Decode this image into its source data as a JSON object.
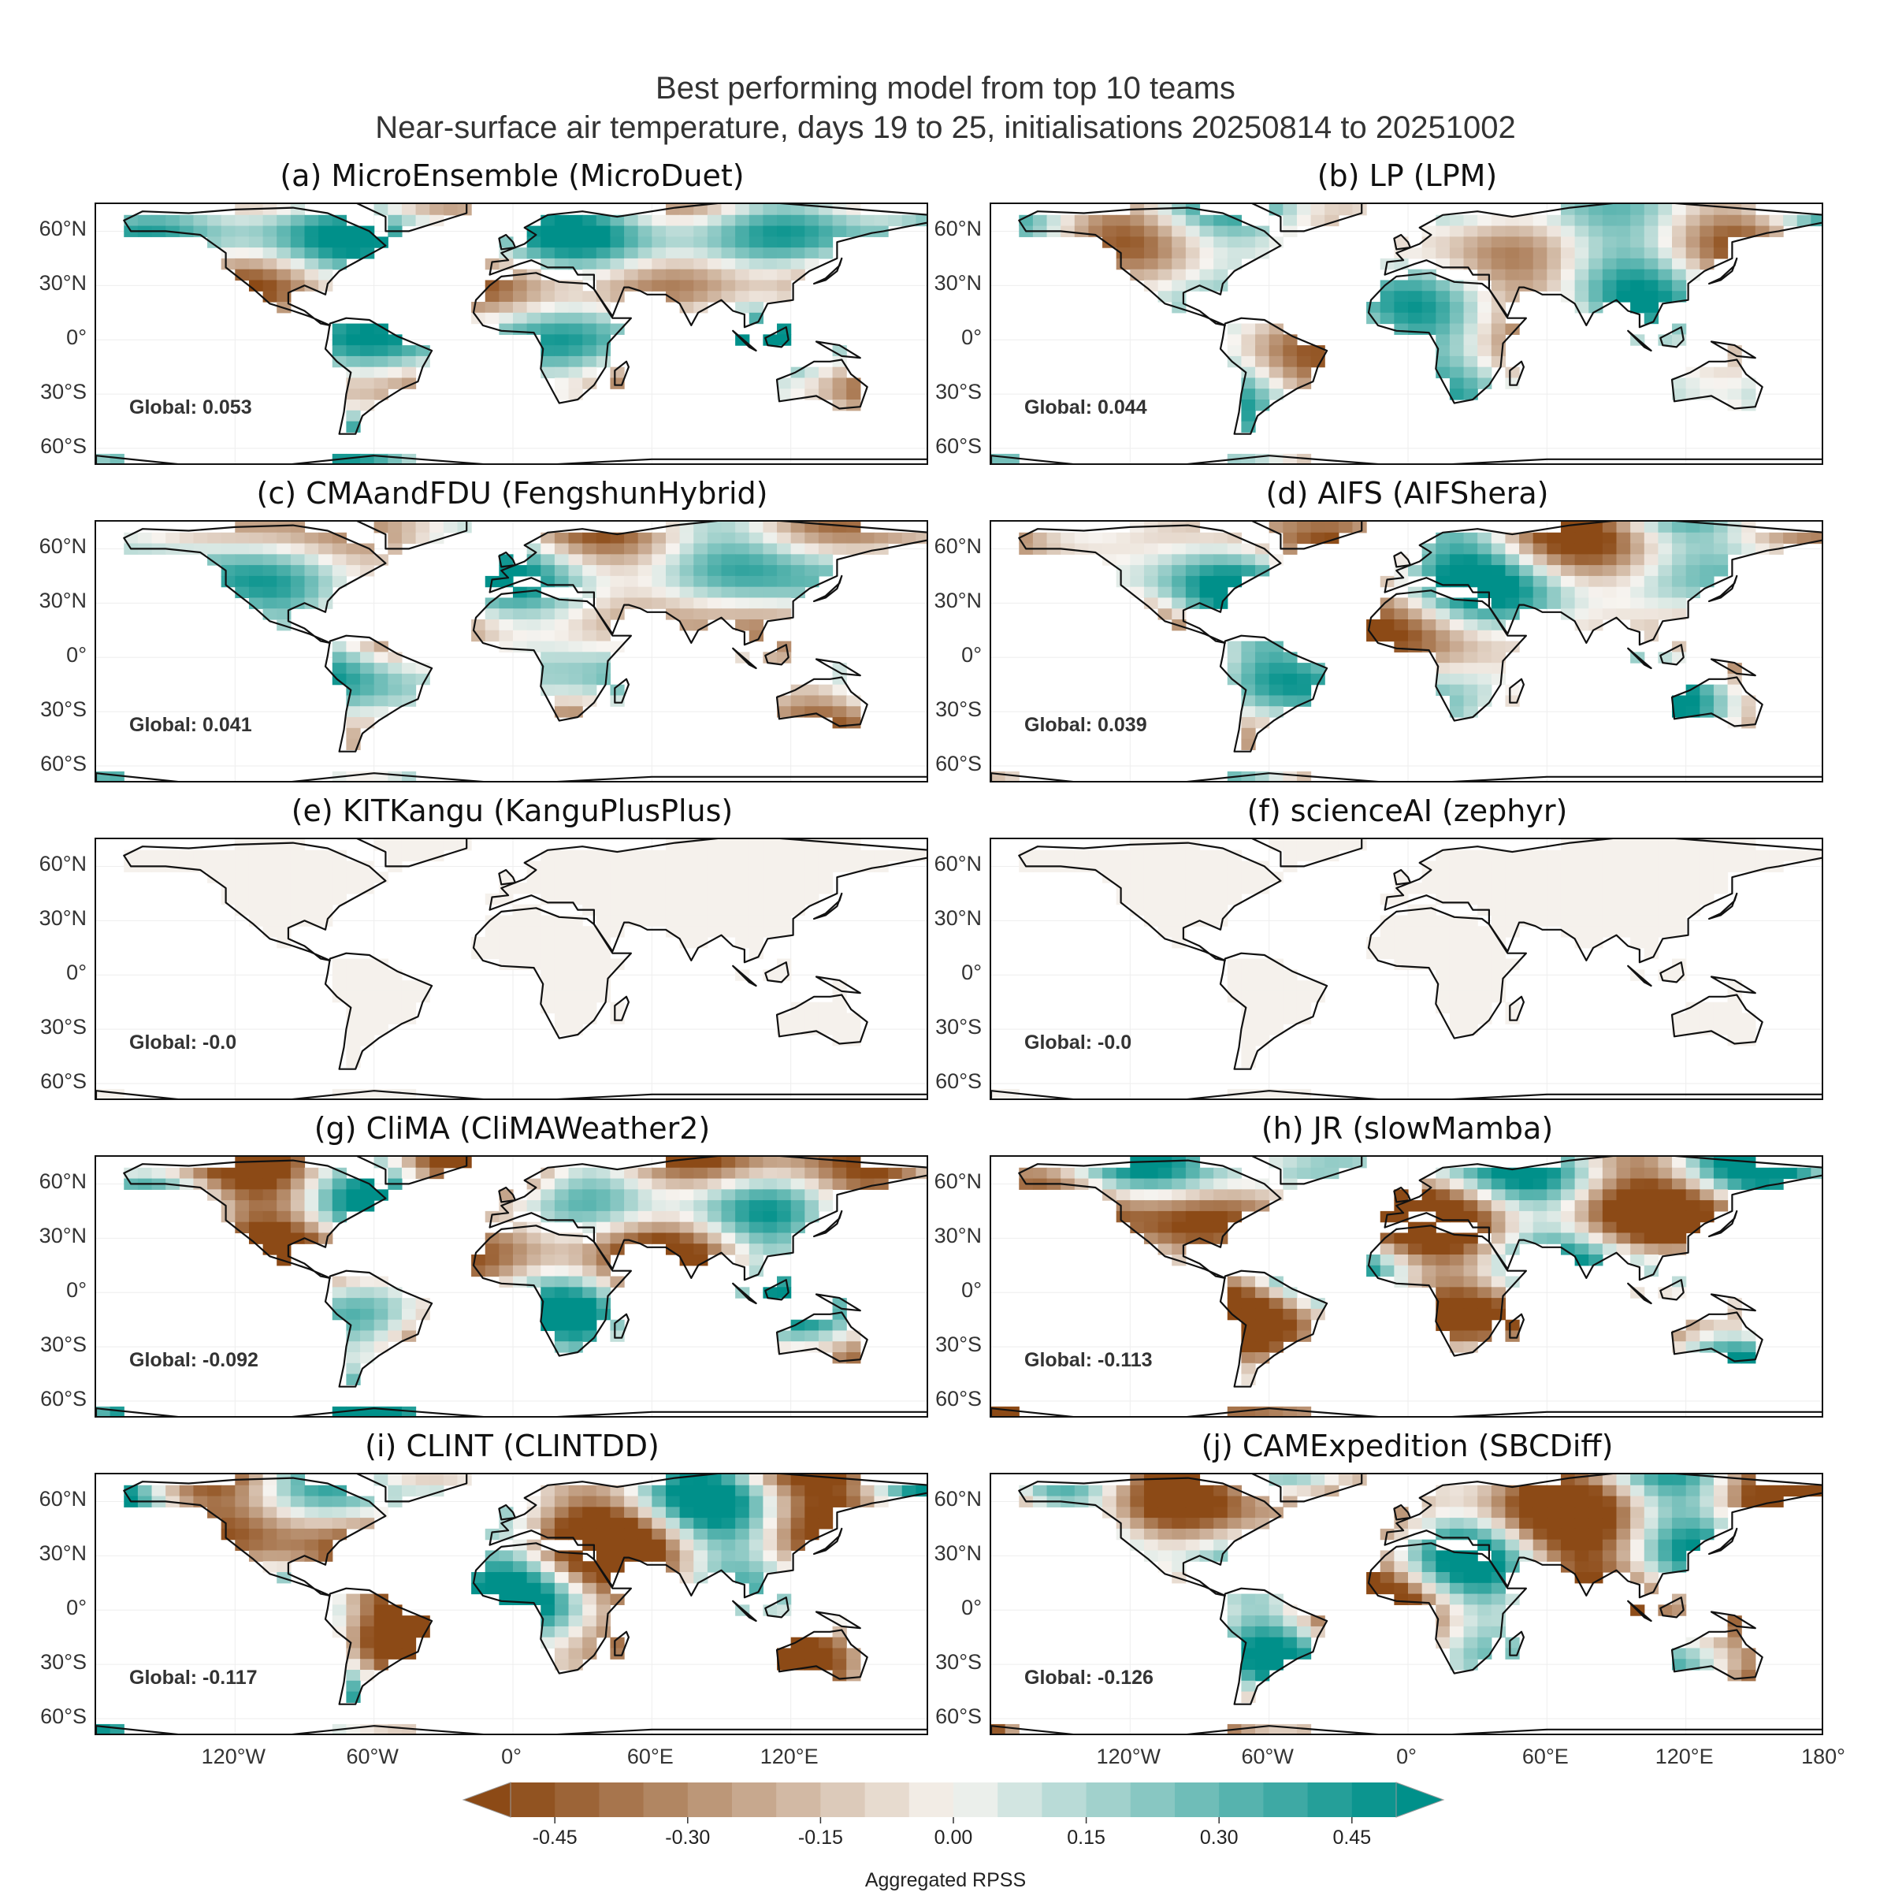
{
  "title": "Best performing model from top 10 teams",
  "subtitle": "Near-surface air temperature, days 19 to 25, initialisations 20250814 to 20251002",
  "colors": {
    "negative": "#8c4a16",
    "neutral": "#f7f4f0",
    "positive": "#00908a",
    "coast": "#111111"
  },
  "chart_data": {
    "type": "heatmap",
    "colorbar": {
      "label": "Aggregated RPSS",
      "ticks": [
        "-0.45",
        "-0.30",
        "-0.15",
        "0.00",
        "0.15",
        "0.30",
        "0.45"
      ],
      "range": [
        -0.5,
        0.5
      ],
      "levels": 22,
      "extend": "both"
    },
    "lat_ticks": [
      "60°N",
      "30°N",
      "0°",
      "30°S",
      "60°S"
    ],
    "lon_ticks": [
      "120°W",
      "60°W",
      "0°",
      "60°E",
      "120°E",
      "180°"
    ],
    "panels": [
      {
        "label": "(a) MicroEnsemble (MicroDuet)",
        "global_text": "Global: 0.053",
        "global": 0.053
      },
      {
        "label": "(b) LP (LPM)",
        "global_text": "Global: 0.044",
        "global": 0.044
      },
      {
        "label": "(c) CMAandFDU (FengshunHybrid)",
        "global_text": "Global: 0.041",
        "global": 0.041
      },
      {
        "label": "(d) AIFS (AIFShera)",
        "global_text": "Global: 0.039",
        "global": 0.039
      },
      {
        "label": "(e) KITKangu (KanguPlusPlus)",
        "global_text": "Global: -0.0",
        "global": -0.0
      },
      {
        "label": "(f) scienceAI (zephyr)",
        "global_text": "Global: -0.0",
        "global": -0.0
      },
      {
        "label": "(g) CliMA (CliMAWeather2)",
        "global_text": "Global: -0.092",
        "global": -0.092
      },
      {
        "label": "(h) JR (slowMamba)",
        "global_text": "Global: -0.113",
        "global": -0.113
      },
      {
        "label": "(i) CLINT (CLINTDD)",
        "global_text": "Global: -0.117",
        "global": -0.117
      },
      {
        "label": "(j) CAMExpedition (SBCDiff)",
        "global_text": "Global: -0.126",
        "global": -0.126
      }
    ]
  }
}
